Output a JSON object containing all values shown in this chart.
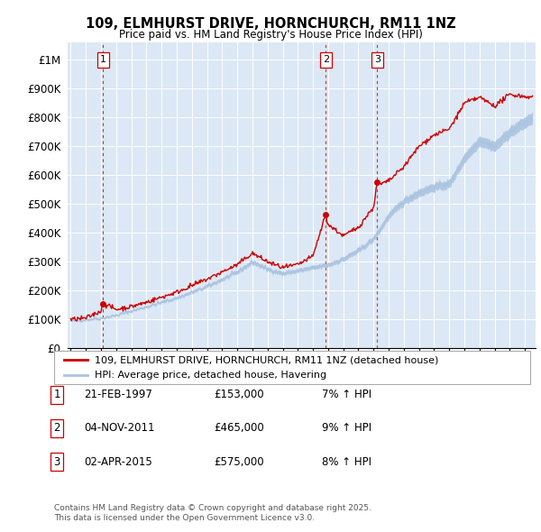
{
  "title": "109, ELMHURST DRIVE, HORNCHURCH, RM11 1NZ",
  "subtitle": "Price paid vs. HM Land Registry's House Price Index (HPI)",
  "ylabel_ticks": [
    "£0",
    "£100K",
    "£200K",
    "£300K",
    "£400K",
    "£500K",
    "£600K",
    "£700K",
    "£800K",
    "£900K",
    "£1M"
  ],
  "ylim": [
    0,
    1050000
  ],
  "xlim_start": 1994.8,
  "xlim_end": 2025.7,
  "sale_dates": [
    1997.13,
    2011.84,
    2015.25
  ],
  "sale_prices": [
    153000,
    465000,
    575000
  ],
  "sale_labels": [
    "1",
    "2",
    "3"
  ],
  "legend_entries": [
    "109, ELMHURST DRIVE, HORNCHURCH, RM11 1NZ (detached house)",
    "HPI: Average price, detached house, Havering"
  ],
  "table_entries": [
    {
      "label": "1",
      "date": "21-FEB-1997",
      "price": "£153,000",
      "hpi": "7% ↑ HPI"
    },
    {
      "label": "2",
      "date": "04-NOV-2011",
      "price": "£465,000",
      "hpi": "9% ↑ HPI"
    },
    {
      "label": "3",
      "date": "02-APR-2015",
      "price": "£575,000",
      "hpi": "8% ↑ HPI"
    }
  ],
  "footnote": "Contains HM Land Registry data © Crown copyright and database right 2025.\nThis data is licensed under the Open Government Licence v3.0.",
  "hpi_color": "#aac4e0",
  "sale_line_color": "#cc0000",
  "bg_color": "#dce8f5",
  "grid_color": "#ffffff",
  "sale_marker_color": "#cc0000",
  "dashed_line_color": "#cc0000",
  "legend_border_color": "#aaaaaa",
  "table_box_color": "#cc0000"
}
